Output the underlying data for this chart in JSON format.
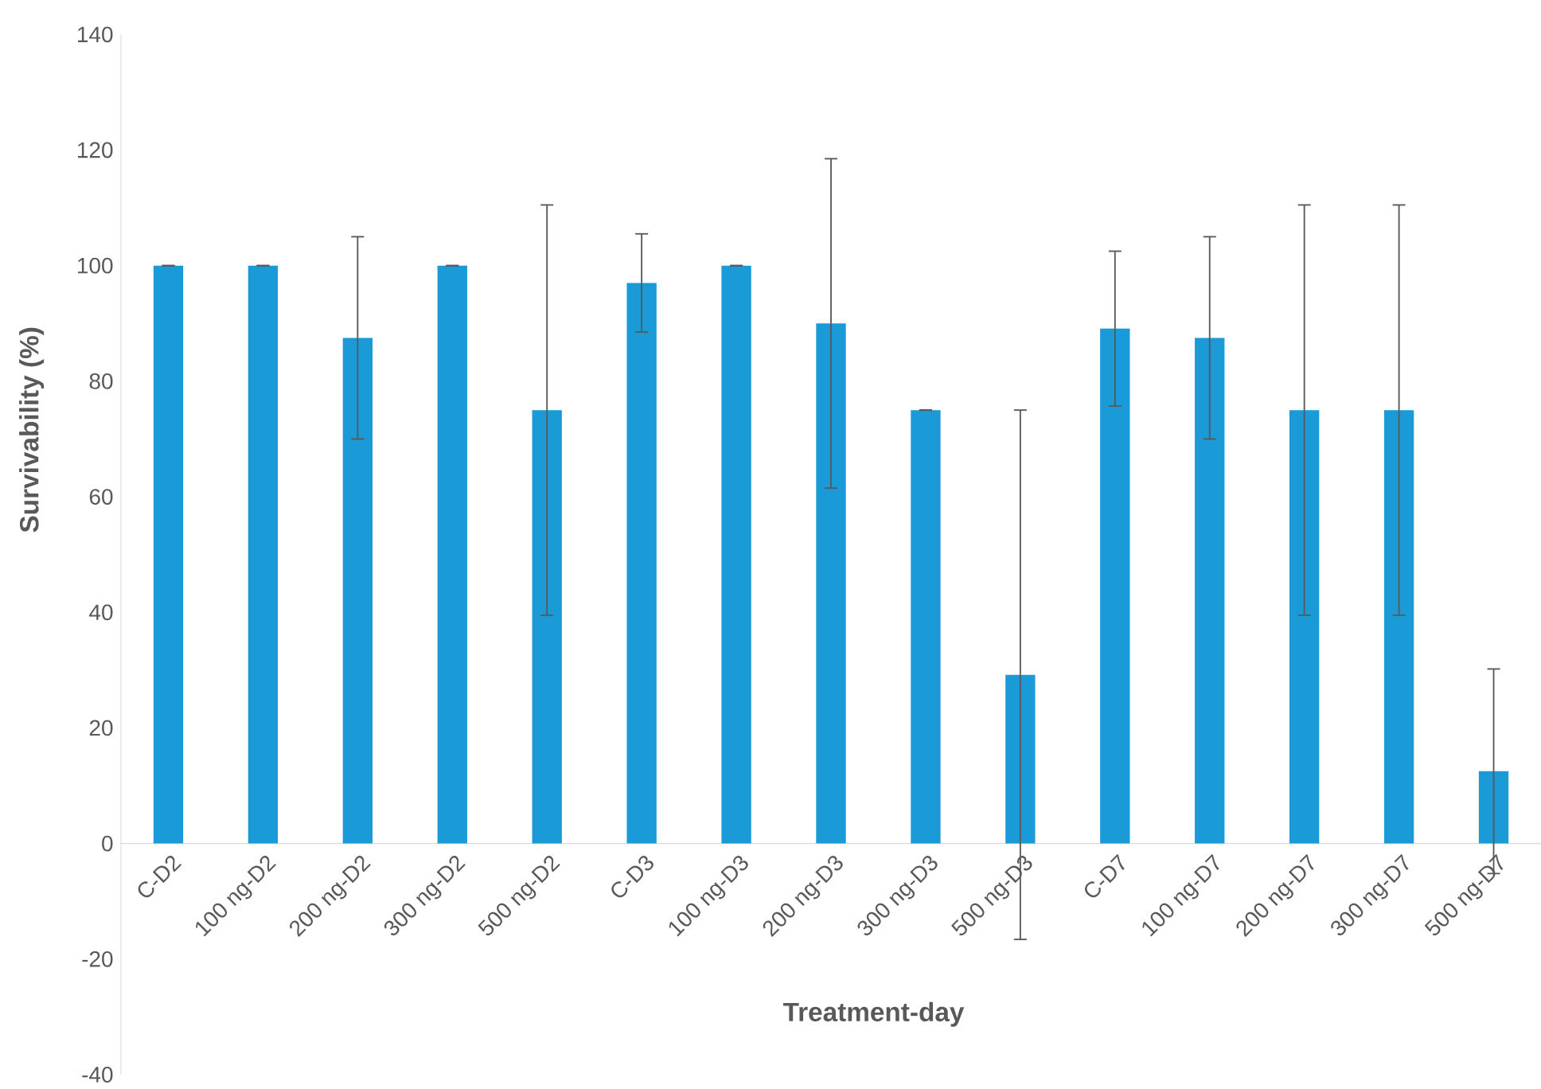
{
  "chart_data": {
    "type": "bar",
    "xlabel": "Treatment-day",
    "ylabel": "Survivability (%)",
    "categories": [
      "C-D2",
      "100 ng-D2",
      "200 ng-D2",
      "300 ng-D2",
      "500 ng-D2",
      "C-D3",
      "100 ng-D3",
      "200 ng-D3",
      "300 ng-D3",
      "500 ng-D3",
      "C-D7",
      "100 ng-D7",
      "200 ng-D7",
      "300 ng-D7",
      "500 ng-D7"
    ],
    "values": [
      100,
      100,
      87.5,
      100,
      75,
      97,
      100,
      90,
      75,
      29.2,
      89.1,
      87.5,
      75,
      75,
      12.5
    ],
    "errors": [
      0,
      0,
      17.5,
      0,
      35.5,
      8.5,
      0,
      28.5,
      0,
      45.8,
      13.4,
      17.5,
      35.5,
      35.5,
      17.7
    ],
    "color": "#1a9bd7",
    "ylim": [
      -40,
      140
    ],
    "yticks": [
      -40,
      -20,
      0,
      20,
      40,
      60,
      80,
      100,
      120,
      140
    ],
    "grid": false
  }
}
